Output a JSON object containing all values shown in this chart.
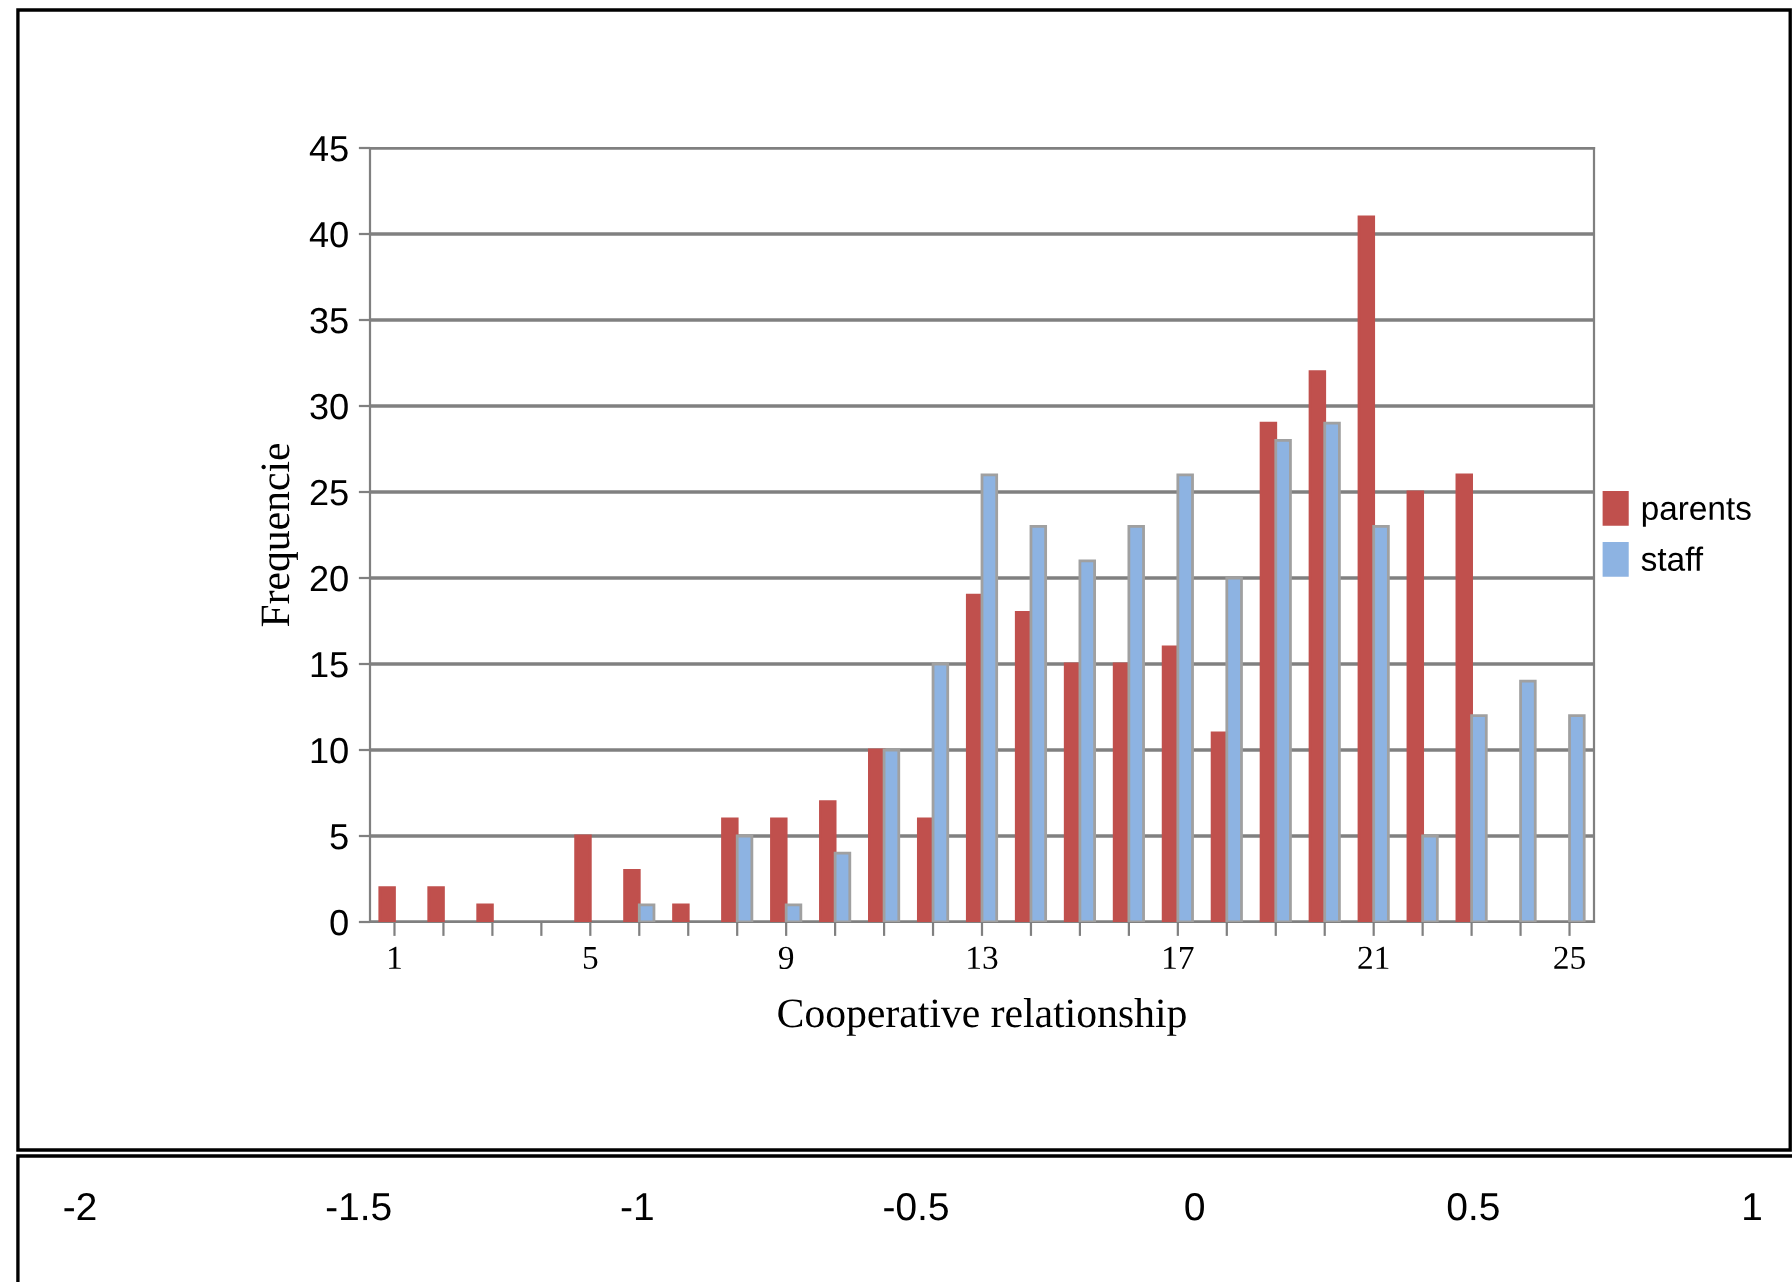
{
  "chart_data": {
    "type": "bar",
    "xlabel": "Cooperative relationship",
    "ylabel": "Frequencie",
    "categories": [
      "1",
      null,
      null,
      null,
      "5",
      null,
      null,
      null,
      "9",
      null,
      null,
      null,
      "13",
      null,
      null,
      null,
      "17",
      null,
      null,
      null,
      "21",
      null,
      null,
      null,
      "25"
    ],
    "series": [
      {
        "name": "parents",
        "color": "#c0504d",
        "values": [
          2,
          2,
          1,
          null,
          5,
          3,
          1,
          6,
          6,
          7,
          10,
          6,
          19,
          18,
          15,
          15,
          16,
          11,
          29,
          32,
          41,
          25,
          26,
          null,
          null
        ]
      },
      {
        "name": "staff",
        "color": "#8db3e2",
        "values": [
          null,
          null,
          null,
          null,
          null,
          1,
          null,
          5,
          1,
          4,
          10,
          15,
          26,
          23,
          21,
          23,
          26,
          20,
          28,
          29,
          23,
          5,
          12,
          14,
          12
        ]
      }
    ],
    "ylim": [
      0,
      45
    ],
    "yticks": [
      0,
      5,
      10,
      15,
      20,
      25,
      30,
      35,
      40,
      45
    ],
    "grid": "y",
    "legend": "right",
    "annotations": [
      "-2",
      "-1.5",
      "-1",
      "-0.5",
      "0",
      "0.5",
      "1"
    ]
  }
}
